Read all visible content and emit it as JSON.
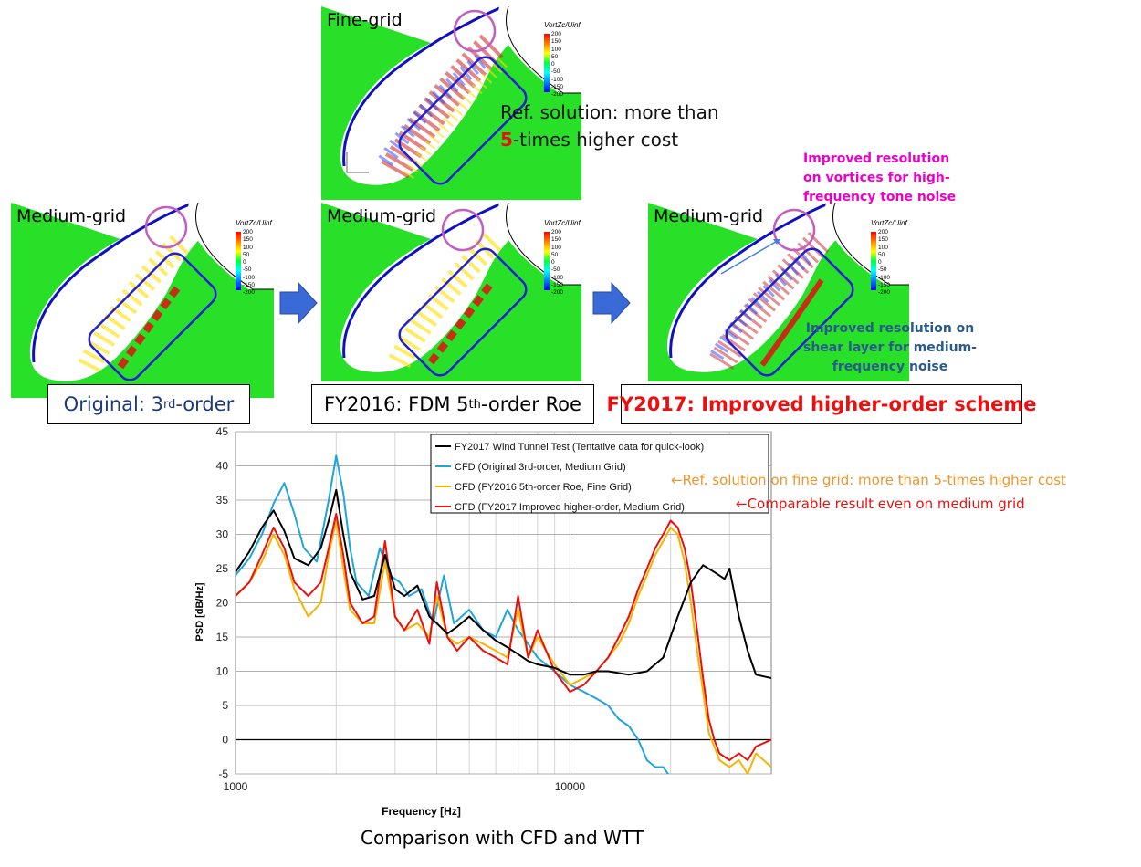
{
  "panels": {
    "fine": {
      "grid_label": "Fine-grid",
      "colorbar_title": "VortZc/Uinf",
      "colorbar_ticks": [
        "200",
        "150",
        "100",
        "50",
        "0",
        "-50",
        "-100",
        "-150",
        "-200"
      ]
    },
    "medium_original": {
      "grid_label": "Medium-grid",
      "colorbar_title": "VortZc/Uinf",
      "colorbar_ticks": [
        "200",
        "150",
        "100",
        "50",
        "0",
        "-50",
        "-100",
        "-150",
        "-200"
      ]
    },
    "medium_fy2016": {
      "grid_label": "Medium-grid",
      "colorbar_title": "VortZc/Uinf",
      "colorbar_ticks": [
        "200",
        "150",
        "100",
        "50",
        "0",
        "-50",
        "-100",
        "-150",
        "-200"
      ]
    },
    "medium_fy2017": {
      "grid_label": "Medium-grid",
      "colorbar_title": "VortZc/Uinf",
      "colorbar_ticks": [
        "200",
        "150",
        "100",
        "50",
        "0",
        "-50",
        "-100",
        "-150",
        "-200"
      ]
    }
  },
  "captions": {
    "original_prefix": "Original: 3",
    "original_sup": "rd",
    "original_suffix": "-order",
    "fy2016_prefix": "FY2016: FDM 5",
    "fy2016_sup": "th",
    "fy2016_suffix": "-order Roe",
    "fy2017": "FY2017: Improved higher-order scheme"
  },
  "notes": {
    "ref_line1": "Ref. solution: more than",
    "ref_num": "5",
    "ref_line2": "-times higher cost",
    "vortex_line1": "Improved resolution",
    "vortex_line2": "on vortices for high-",
    "vortex_line3": "frequency tone noise",
    "shear_line1": "Improved resolution on",
    "shear_line2": "shear layer for medium-",
    "shear_line3": "frequency noise"
  },
  "colors": {
    "wtt": "#000000",
    "cfd_original": "#1fa5dc",
    "cfd_fy2016": "#f5b400",
    "cfd_fy2017": "#e81010",
    "vortex_note": "#ee00cc",
    "shear_note": "#2a5a8a",
    "ref_annotation": "#f0962a",
    "comparable_annotation": "#e81010"
  },
  "chart_data": {
    "type": "line",
    "xscale": "log",
    "xlim": [
      1000,
      40000
    ],
    "ylim": [
      -5,
      45
    ],
    "xlabel": "Frequency [Hz]",
    "ylabel": "PSD [dB/Hz]",
    "x_ticks": [
      "1000",
      "10000"
    ],
    "y_ticks": [
      "-5",
      "0",
      "5",
      "10",
      "15",
      "20",
      "25",
      "30",
      "35",
      "40",
      "45"
    ],
    "grid": true,
    "legend_position": "top-right",
    "series": [
      {
        "name": "FY2017 Wind Tunnel Test (Tentative data for quick-look)",
        "x": [
          1000,
          1100,
          1200,
          1300,
          1400,
          1500,
          1650,
          1800,
          1900,
          2000,
          2100,
          2200,
          2400,
          2600,
          2800,
          3000,
          3200,
          3500,
          3800,
          4000,
          4300,
          4600,
          5000,
          5500,
          6000,
          6500,
          7000,
          7500,
          8000,
          9000,
          10000,
          11000,
          12000,
          13000,
          15000,
          17000,
          19000,
          21000,
          23000,
          25000,
          27000,
          29000,
          30000,
          32000,
          34000,
          36000,
          40000
        ],
        "y": [
          24.5,
          27.5,
          31,
          33.5,
          30.5,
          26.5,
          25.5,
          28,
          32,
          36.5,
          30,
          24.5,
          20.5,
          21,
          27,
          22,
          21,
          22.5,
          18,
          17,
          15.5,
          16.5,
          18,
          16,
          14.5,
          13.5,
          12.5,
          11.5,
          11,
          10.5,
          9.5,
          9.5,
          10,
          10,
          9.5,
          10,
          12,
          18,
          23,
          25.5,
          24.5,
          23.5,
          25,
          18,
          13,
          9.5,
          9
        ]
      },
      {
        "name": "CFD (Original 3rd-order, Medium Grid)",
        "x": [
          1000,
          1100,
          1200,
          1300,
          1400,
          1500,
          1600,
          1750,
          1900,
          2000,
          2100,
          2200,
          2300,
          2500,
          2700,
          2900,
          3100,
          3300,
          3600,
          3900,
          4200,
          4500,
          5000,
          5500,
          6000,
          6500,
          7000,
          7500,
          8000,
          9000,
          10000,
          11000,
          12000,
          13000,
          14000,
          15000,
          16000,
          17000,
          18000,
          19000,
          20000,
          21000
        ],
        "y": [
          24,
          26.5,
          30,
          34.5,
          37.5,
          33,
          28,
          26,
          35,
          41.5,
          36,
          28,
          23,
          21,
          28,
          24,
          23,
          21,
          22,
          17,
          24,
          17,
          19,
          16,
          15,
          19,
          16,
          14,
          12,
          10,
          8,
          7,
          6,
          5,
          3,
          2,
          0,
          -3,
          -4,
          -4,
          -5.5,
          -6
        ]
      },
      {
        "name": "CFD (FY2016 5th-order Roe, Fine Grid)",
        "x": [
          1000,
          1100,
          1200,
          1300,
          1400,
          1500,
          1650,
          1800,
          1900,
          2000,
          2100,
          2200,
          2400,
          2600,
          2800,
          3000,
          3200,
          3500,
          3800,
          4000,
          4300,
          4600,
          5000,
          5500,
          6000,
          6500,
          7000,
          7500,
          8000,
          9000,
          10000,
          11000,
          12000,
          13000,
          14000,
          15000,
          16000,
          17000,
          18000,
          19000,
          20000,
          21000,
          22000,
          23000,
          24000,
          25000,
          26000,
          27000,
          28000,
          30000,
          32000,
          34000,
          36000,
          40000
        ],
        "y": [
          21,
          23,
          26,
          30,
          27,
          22,
          18,
          20,
          27,
          32,
          25,
          19,
          17,
          17,
          26,
          18,
          16,
          17,
          15,
          21,
          15,
          14,
          15,
          14,
          13,
          12,
          19,
          12,
          15,
          11,
          8,
          9,
          10,
          12,
          14,
          17,
          21,
          24,
          27,
          29,
          31,
          30,
          26,
          20,
          13,
          7,
          1,
          -1,
          -3,
          -4,
          -3,
          -5,
          -2,
          -4
        ]
      },
      {
        "name": "CFD (FY2017 Improved higher-order, Medium Grid)",
        "x": [
          1000,
          1100,
          1200,
          1300,
          1400,
          1500,
          1650,
          1800,
          1900,
          2000,
          2100,
          2200,
          2400,
          2600,
          2800,
          3000,
          3200,
          3500,
          3800,
          4000,
          4300,
          4600,
          5000,
          5500,
          6000,
          6500,
          7000,
          7500,
          8000,
          9000,
          10000,
          11000,
          12000,
          13000,
          14000,
          15000,
          16000,
          17000,
          18000,
          19000,
          20000,
          21000,
          22000,
          23000,
          24000,
          25000,
          26000,
          27000,
          28000,
          30000,
          32000,
          34000,
          36000,
          40000
        ],
        "y": [
          21,
          23,
          27,
          31,
          28,
          23,
          21,
          23,
          28,
          33,
          27,
          20,
          17,
          18,
          29,
          18,
          16,
          19,
          14,
          23,
          15,
          13,
          15,
          13,
          12,
          11,
          21,
          12,
          16,
          10,
          7,
          8,
          10,
          12,
          15,
          18,
          22,
          25,
          28,
          30,
          32,
          31,
          28,
          23,
          16,
          9,
          3,
          0,
          -2,
          -3,
          -2,
          -3,
          -1,
          0
        ]
      }
    ],
    "annotations": [
      {
        "text": "←Ref. solution on fine grid: more than 5-times higher cost"
      },
      {
        "text": "←Comparable result even on medium grid"
      }
    ]
  },
  "bottom_caption": "Comparison with CFD and WTT"
}
